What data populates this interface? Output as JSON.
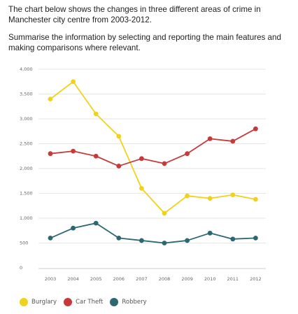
{
  "intro": {
    "line1": "The chart below shows the changes in three different areas of crime in Manchester city centre from 2003-2012.",
    "line2": "Summarise the information by selecting and reporting the main features and making comparisons where relevant."
  },
  "chart_data": {
    "type": "line",
    "categories": [
      "2003",
      "2004",
      "2005",
      "2006",
      "2007",
      "2008",
      "2009",
      "2010",
      "2011",
      "2012"
    ],
    "ylim": [
      0,
      4000
    ],
    "yticks": [
      0,
      500,
      1000,
      1500,
      2000,
      2500,
      3000,
      3500,
      4000
    ],
    "ytick_labels": [
      "0",
      "500",
      "1,000",
      "1,500",
      "2,000",
      "2,500",
      "3,000",
      "3,500",
      "4,000"
    ],
    "grid": true,
    "legend_position": "bottom-left",
    "series": [
      {
        "name": "Burglary",
        "color": "#f0d21c",
        "values": [
          3400,
          3750,
          3100,
          2650,
          1600,
          1100,
          1450,
          1400,
          1470,
          1380
        ]
      },
      {
        "name": "Car Theft",
        "color": "#c83a3a",
        "values": [
          2300,
          2350,
          2250,
          2050,
          2200,
          2100,
          2300,
          2600,
          2550,
          2800
        ]
      },
      {
        "name": "Robbery",
        "color": "#2b6872",
        "values": [
          600,
          800,
          900,
          600,
          550,
          500,
          550,
          700,
          580,
          600
        ]
      }
    ]
  }
}
